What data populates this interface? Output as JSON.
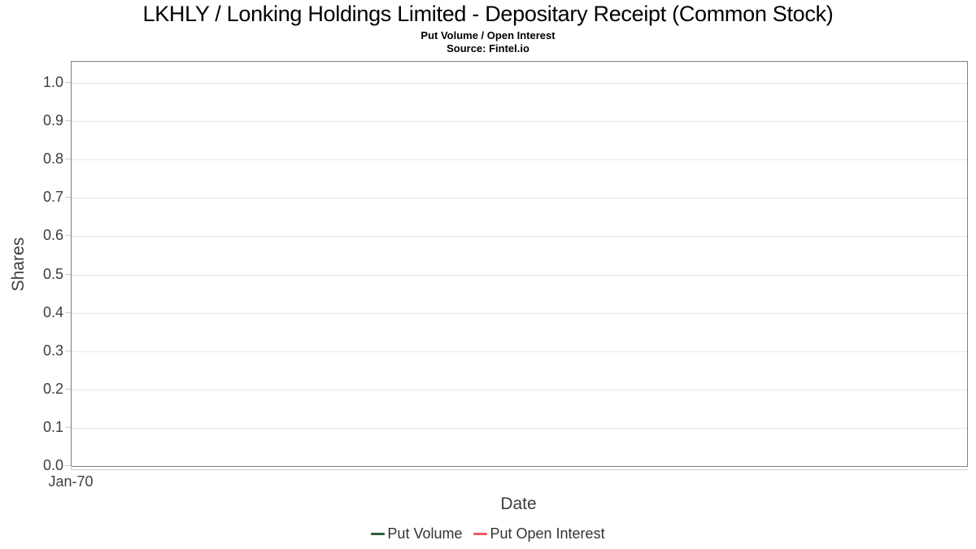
{
  "header": {
    "title": "LKHLY / Lonking Holdings Limited - Depositary Receipt (Common Stock)",
    "subtitle": "Put Volume / Open Interest",
    "source": "Source: Fintel.io"
  },
  "chart_data": {
    "type": "line",
    "title": "LKHLY / Lonking Holdings Limited - Depositary Receipt (Common Stock)",
    "subtitle": "Put Volume / Open Interest",
    "source_note": "Source: Fintel.io",
    "xlabel": "Date",
    "ylabel": "Shares",
    "ylim": [
      0.0,
      1.0
    ],
    "yticks": [
      0.0,
      0.1,
      0.2,
      0.3,
      0.4,
      0.5,
      0.6,
      0.7,
      0.8,
      0.9,
      1.0
    ],
    "ytick_labels": [
      "0.0",
      "0.1",
      "0.2",
      "0.3",
      "0.4",
      "0.5",
      "0.6",
      "0.7",
      "0.8",
      "0.9",
      "1.0"
    ],
    "xtick_labels": [
      "Jan-70"
    ],
    "grid": true,
    "legend_position": "bottom",
    "series": [
      {
        "name": "Put Volume",
        "color": "#2f5d3f",
        "x": [],
        "values": []
      },
      {
        "name": "Put Open Interest",
        "color": "#f45b5b",
        "x": [],
        "values": []
      }
    ]
  }
}
